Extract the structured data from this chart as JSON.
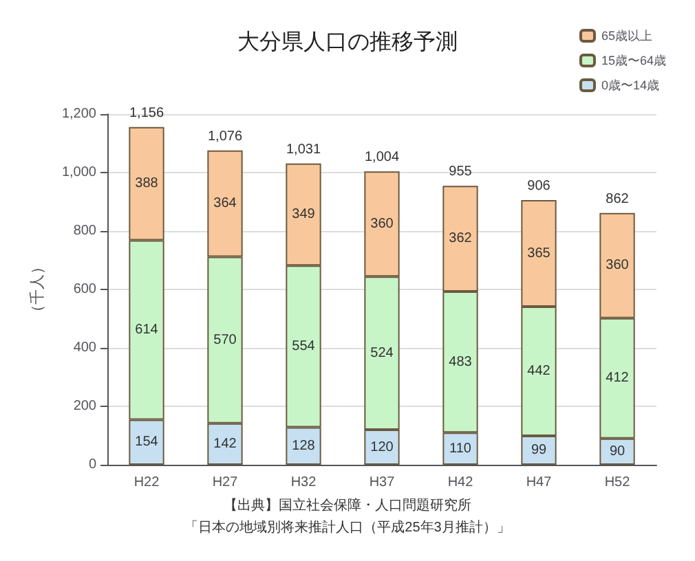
{
  "chart_data": {
    "type": "bar",
    "title": "大分県人口の推移予測",
    "ylabel": "（千人）",
    "categories": [
      "H22",
      "H27",
      "H32",
      "H37",
      "H42",
      "H47",
      "H52"
    ],
    "stacked": true,
    "series": [
      {
        "name": "0歳〜14歳",
        "color": "#c6e0f2",
        "values": [
          154,
          142,
          128,
          120,
          110,
          99,
          90
        ]
      },
      {
        "name": "15歳〜64歳",
        "color": "#c8f5c8",
        "values": [
          614,
          570,
          554,
          524,
          483,
          442,
          412
        ]
      },
      {
        "name": "65歳以上",
        "color": "#f8c89c",
        "values": [
          388,
          364,
          349,
          360,
          362,
          365,
          360
        ]
      }
    ],
    "totals": [
      "1,156",
      "1,076",
      "1,031",
      "1,004",
      "955",
      "906",
      "862"
    ],
    "data_labels": true,
    "ylim": [
      0,
      1200
    ],
    "yticks": [
      0,
      200,
      400,
      600,
      800,
      {
        "value": 1000,
        "label": "1,000"
      },
      {
        "value": 1200,
        "label": "1,200"
      }
    ],
    "grid": "y",
    "legend": "top right",
    "annotations": [
      "【出典】国立社会保障・人口問題研究所",
      "「日本の地域別将来推計人口（平成25年3月推計）」"
    ]
  }
}
